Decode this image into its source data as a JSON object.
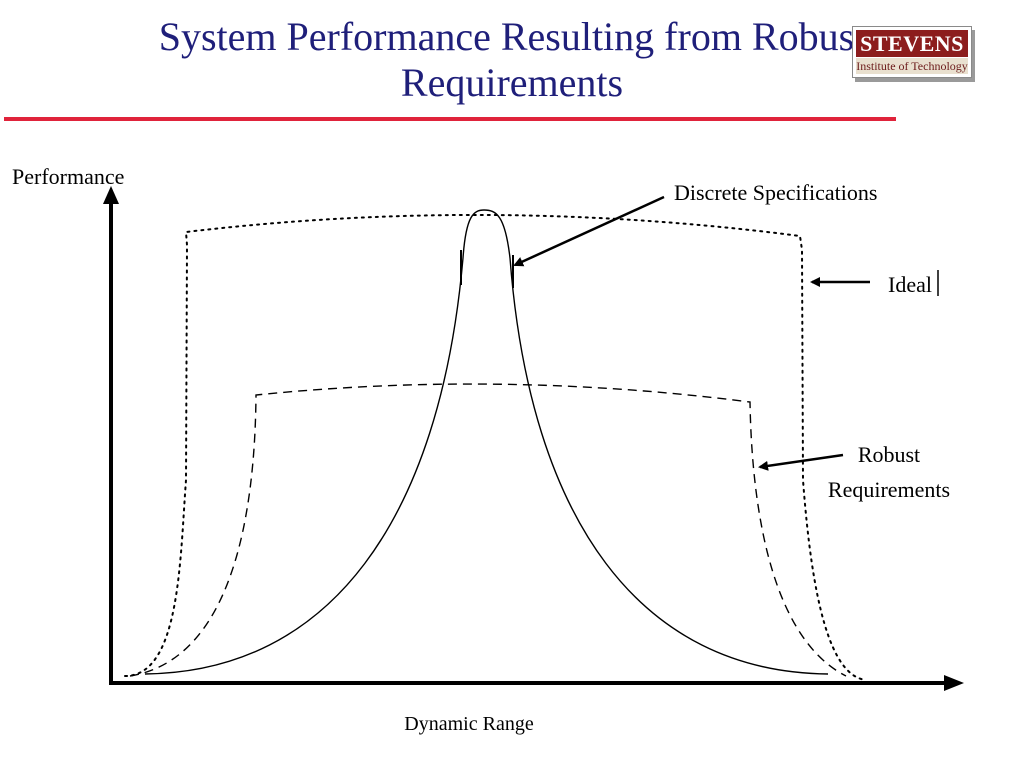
{
  "slide": {
    "title_line1": "System Performance Resulting from Robust",
    "title_line2": "Requirements",
    "title_color": "#1f1f7a",
    "rule_color": "#e0233b"
  },
  "logo": {
    "name": "STEVENS",
    "subtitle": "Institute of Technology",
    "brand_color": "#8c1d1d"
  },
  "diagram": {
    "y_axis_label": "Performance",
    "x_axis_label": "Dynamic Range",
    "callouts": {
      "discrete": "Discrete Specifications",
      "ideal": "Ideal",
      "robust_line1": "Robust",
      "robust_line2": "Requirements"
    },
    "curves": [
      {
        "name": "Discrete Specifications",
        "line_style": "solid"
      },
      {
        "name": "Robust Requirements",
        "line_style": "dashed"
      },
      {
        "name": "Ideal",
        "line_style": "dotted"
      }
    ]
  }
}
